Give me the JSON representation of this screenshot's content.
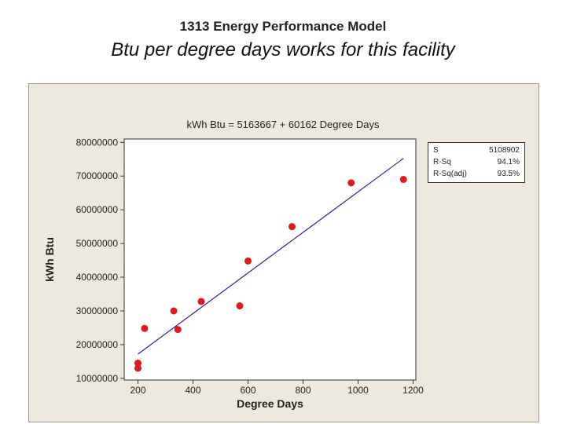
{
  "slide": {
    "title": "Btu per degree days works for this facility"
  },
  "stats": [
    {
      "label": "S",
      "value": "5108902"
    },
    {
      "label": "R-Sq",
      "value": "94.1%"
    },
    {
      "label": "R-Sq(adj)",
      "value": "93.5%"
    }
  ],
  "colors": {
    "points": "#e0191a",
    "fit_line": "#2222bb",
    "panel": "#ece9df"
  },
  "chart_data": {
    "type": "scatter",
    "title": "1313 Energy Performance Model",
    "subtitle": "kWh Btu =  5163667 + 60162 Degree Days",
    "xlabel": "Degree Days",
    "ylabel": "kWh Btu",
    "xlim": [
      150,
      1210
    ],
    "ylim": [
      9500000,
      81000000
    ],
    "x_ticks": [
      200,
      400,
      600,
      800,
      1000,
      1200
    ],
    "y_ticks": [
      10000000,
      20000000,
      30000000,
      40000000,
      50000000,
      60000000,
      70000000,
      80000000
    ],
    "x_tick_labels": [
      "200",
      "400",
      "600",
      "800",
      "1000",
      "1200"
    ],
    "y_tick_labels": [
      "10000000",
      "20000000",
      "30000000",
      "40000000",
      "50000000",
      "60000000",
      "70000000",
      "80000000"
    ],
    "points": [
      {
        "x": 200,
        "y": 14500000
      },
      {
        "x": 200,
        "y": 13000000
      },
      {
        "x": 224,
        "y": 24800000
      },
      {
        "x": 330,
        "y": 30000000
      },
      {
        "x": 345,
        "y": 24500000
      },
      {
        "x": 430,
        "y": 32800000
      },
      {
        "x": 570,
        "y": 31500000
      },
      {
        "x": 600,
        "y": 44800000
      },
      {
        "x": 760,
        "y": 55000000
      },
      {
        "x": 975,
        "y": 68000000
      },
      {
        "x": 1165,
        "y": 69000000
      }
    ],
    "fit": {
      "intercept": 5163667,
      "slope": 60162,
      "x_range": [
        200,
        1165
      ]
    }
  }
}
